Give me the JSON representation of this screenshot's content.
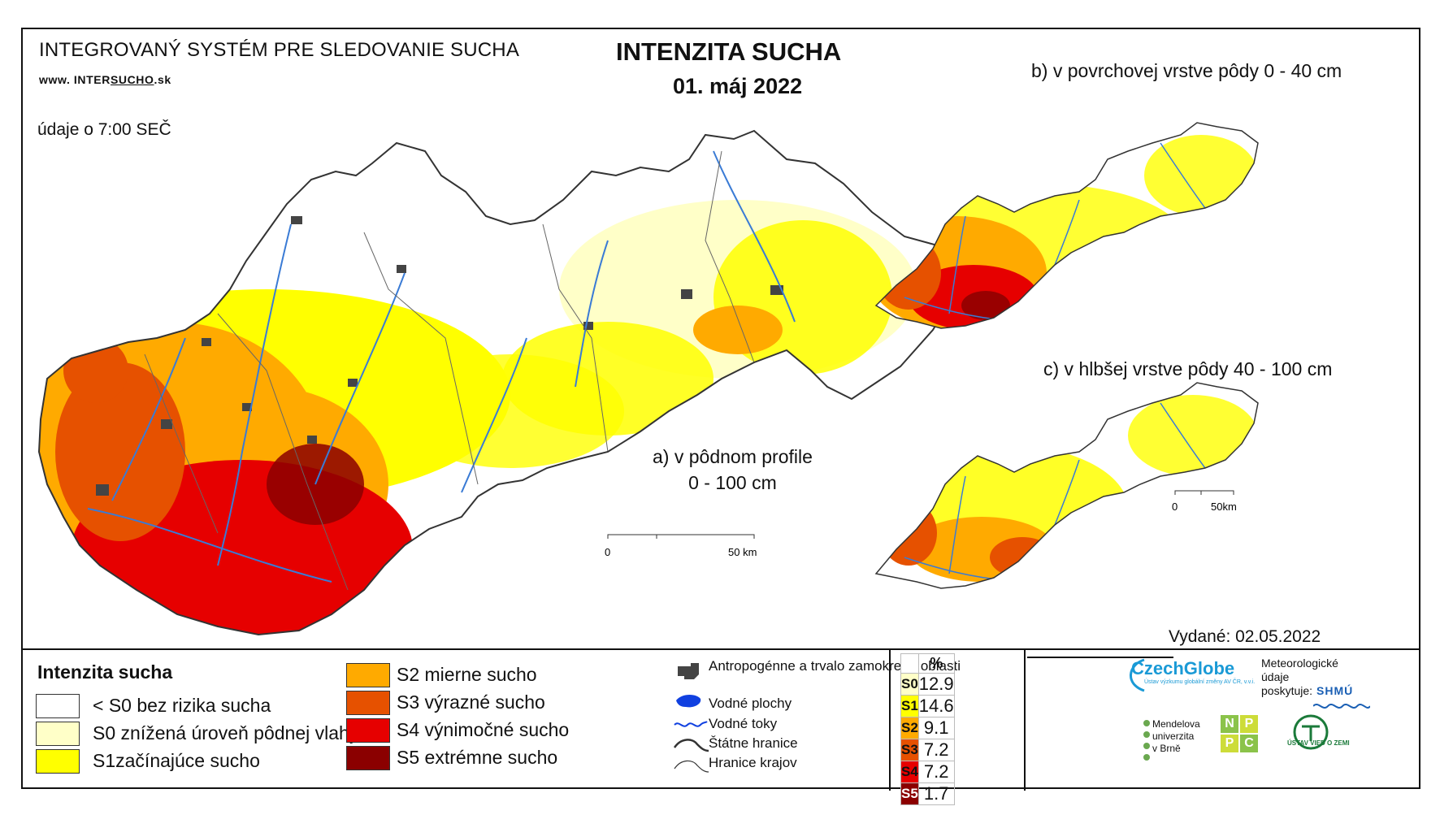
{
  "header": {
    "system_title": "INTEGROVANÝ SYSTÉM PRE SLEDOVANIE SUCHA",
    "website_prefix": "www. INTER",
    "website_underlined": "SUCHO",
    "website_suffix": ".sk",
    "time_note": "údaje o 7:00 SEČ",
    "title": "INTENZITA SUCHA",
    "date": "01. máj 2022"
  },
  "maps": {
    "a_title_line1": "a) v pôdnom profile",
    "a_title_line2": "0 - 100 cm",
    "b_title": "b) v povrchovej vrstve pôdy 0 - 40 cm",
    "c_title": "c) v hlbšej vrstve pôdy 40 - 100 cm",
    "scale_main_zero": "0",
    "scale_main_end": "50 km",
    "scale_small_zero": "0",
    "scale_small_end": "50km"
  },
  "legend": {
    "heading": "Intenzita sucha",
    "classes": [
      {
        "label": "< S0 bez rizika sucha",
        "color": "#ffffff"
      },
      {
        "label": "S0 znížená úroveň pôdnej vlahy",
        "color": "#ffffc8"
      },
      {
        "label": "S1začínajúce sucho",
        "color": "#ffff00"
      },
      {
        "label": "S2 mierne sucho",
        "color": "#ffaa00"
      },
      {
        "label": "S3 výrazné sucho",
        "color": "#e65100"
      },
      {
        "label": "S4 výnimočné sucho",
        "color": "#e60000"
      },
      {
        "label": "S5 extrémne sucho",
        "color": "#8b0000"
      }
    ],
    "symbols": {
      "anthropogenic": "Antropogénne a trvalo zamokrené oblasti",
      "water_bodies": "Vodné plochy",
      "water_streams": "Vodné toky",
      "state_border": "Štátne hranice",
      "region_border": "Hranice krajov"
    }
  },
  "percent_table": {
    "header": "%",
    "rows": [
      {
        "code": "S0",
        "value": "12.9",
        "color": "#ffffc8"
      },
      {
        "code": "S1",
        "value": "14.6",
        "color": "#ffff00"
      },
      {
        "code": "S2",
        "value": "9.1",
        "color": "#ffaa00"
      },
      {
        "code": "S3",
        "value": "7.2",
        "color": "#e65100"
      },
      {
        "code": "S4",
        "value": "7.2",
        "color": "#e60000"
      },
      {
        "code": "S5",
        "value": "1.7",
        "color": "#8b0000"
      }
    ]
  },
  "footer": {
    "issued": "Vydané: 02.05.2022",
    "czechglobe": "CzechGlobe",
    "czechglobe_sub": "Ústav výzkumu globální změny AV ČR, v.v.i.",
    "meteo_line1": "Meteorologické",
    "meteo_line2": "údaje",
    "meteo_line3": "poskytuje:",
    "shmu": "SHMÚ",
    "mendel_line1": "Mendelova",
    "mendel_line2": "univerzita",
    "mendel_line3": "v Brně",
    "nppc_n": "N",
    "nppc_p": "P",
    "nppc_p2": "P",
    "nppc_c": "C",
    "uvz": "ÚSTAV VIED O ZEMI"
  },
  "colors": {
    "s0": "#ffffc8",
    "s1": "#ffff00",
    "s2": "#ffaa00",
    "s3": "#e65100",
    "s4": "#e60000",
    "s5": "#8b0000",
    "river": "#3a7bd5",
    "urban": "#444444"
  }
}
